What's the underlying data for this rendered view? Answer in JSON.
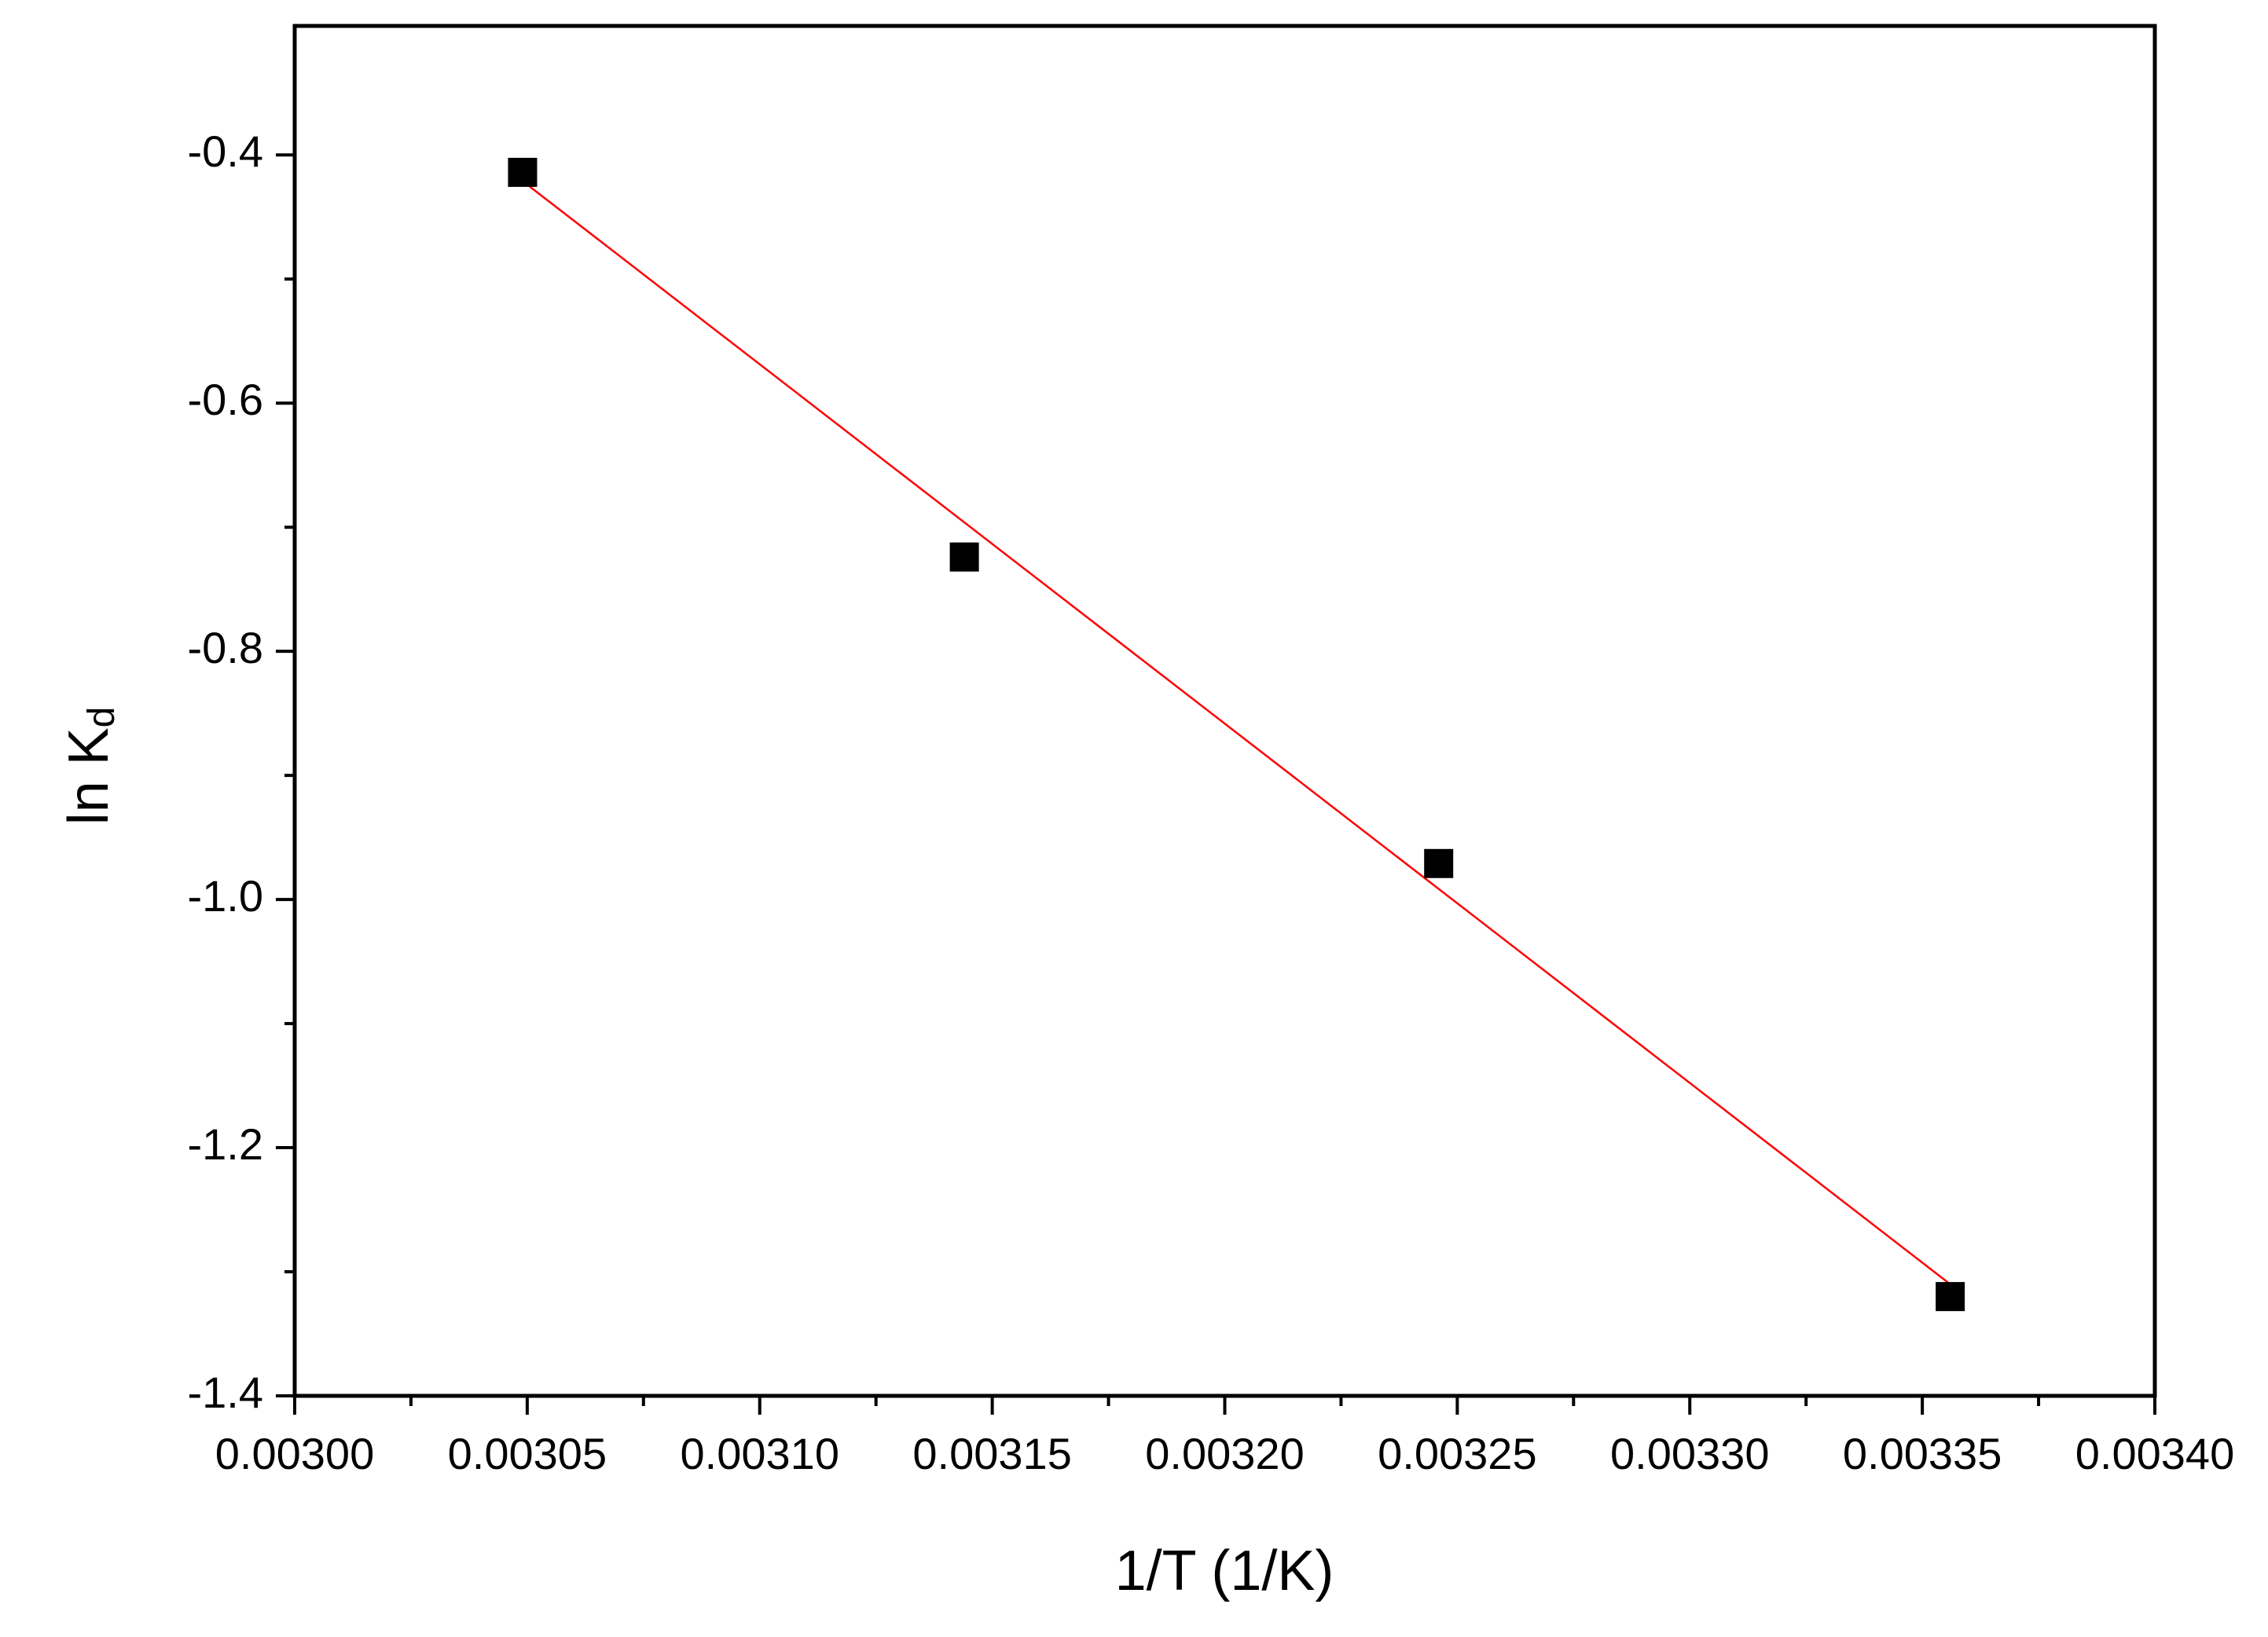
{
  "chart_data": {
    "type": "scatter",
    "xlabel": "1/T (1/K)",
    "ylabel": "ln K",
    "ylabel_subscript": "d",
    "x": [
      0.003049,
      0.003144,
      0.003246,
      0.003356
    ],
    "values": [
      -0.414,
      -0.724,
      -0.971,
      -1.32
    ],
    "color": "#000000",
    "fit": {
      "x": [
        0.003049,
        0.003356
      ],
      "values": [
        -0.421,
        -1.31
      ],
      "color": "#ff0000"
    },
    "xlim": [
      0.003,
      0.0034
    ],
    "ylim": [
      -1.4,
      -0.296
    ],
    "xticks": [
      {
        "value": 0.003,
        "label": "0.00300"
      },
      {
        "value": 0.00305,
        "label": "0.00305"
      },
      {
        "value": 0.0031,
        "label": "0.00310"
      },
      {
        "value": 0.00315,
        "label": "0.00315"
      },
      {
        "value": 0.0032,
        "label": "0.00320"
      },
      {
        "value": 0.00325,
        "label": "0.00325"
      },
      {
        "value": 0.0033,
        "label": "0.00330"
      },
      {
        "value": 0.00335,
        "label": "0.00335"
      },
      {
        "value": 0.0034,
        "label": "0.00340"
      }
    ],
    "yticks": [
      -1.4,
      -1.2,
      -1.0,
      -0.8,
      -0.6,
      -0.4
    ],
    "yticks_labels": [
      "-1.4",
      "-1.2",
      "-1.0",
      "-0.8",
      "-0.6",
      "-0.4"
    ],
    "grid": false
  }
}
